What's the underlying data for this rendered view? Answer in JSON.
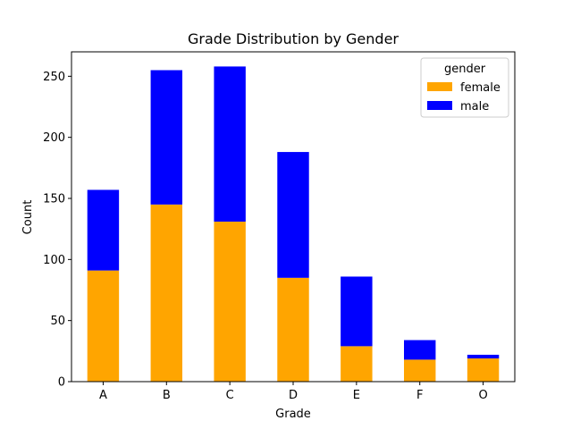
{
  "chart_data": {
    "type": "bar",
    "stacked": true,
    "title": "Grade Distribution by Gender",
    "xlabel": "Grade",
    "ylabel": "Count",
    "categories": [
      "A",
      "B",
      "C",
      "D",
      "E",
      "F",
      "O"
    ],
    "series": [
      {
        "name": "female",
        "color": "#ffa500",
        "values": [
          91,
          145,
          131,
          85,
          29,
          18,
          19
        ]
      },
      {
        "name": "male",
        "color": "#0000ff",
        "values": [
          66,
          110,
          127,
          103,
          57,
          16,
          3
        ]
      }
    ],
    "ylim": [
      0,
      270
    ],
    "yticks": [
      0,
      50,
      100,
      150,
      200,
      250
    ],
    "grid": false,
    "legend": {
      "title": "gender",
      "placement": "top-right"
    }
  }
}
